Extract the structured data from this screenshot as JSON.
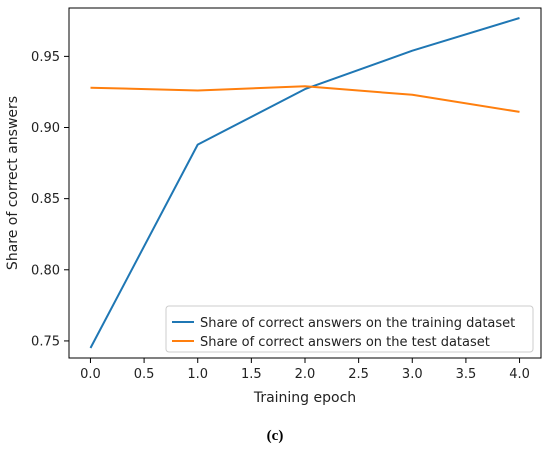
{
  "caption": "(c)",
  "chart_data": {
    "type": "line",
    "xlabel": "Training epoch",
    "ylabel": "Share of correct answers",
    "xlim": [
      -0.2,
      4.2
    ],
    "ylim": [
      0.738,
      0.984
    ],
    "xticks": [
      "0.0",
      "0.5",
      "1.0",
      "1.5",
      "2.0",
      "2.5",
      "3.0",
      "3.5",
      "4.0"
    ],
    "yticks": [
      "0.75",
      "0.80",
      "0.85",
      "0.90",
      "0.95"
    ],
    "grid": false,
    "legend_position": "lower-right",
    "series": [
      {
        "name": "Share of correct answers on the training dataset",
        "color": "#1f77b4",
        "x": [
          0,
          1,
          2,
          3,
          4
        ],
        "y": [
          0.745,
          0.888,
          0.927,
          0.954,
          0.977
        ]
      },
      {
        "name": "Share of correct answers on the test dataset",
        "color": "#ff7f0e",
        "x": [
          0,
          1,
          2,
          3,
          4
        ],
        "y": [
          0.928,
          0.926,
          0.929,
          0.923,
          0.911
        ]
      }
    ]
  }
}
